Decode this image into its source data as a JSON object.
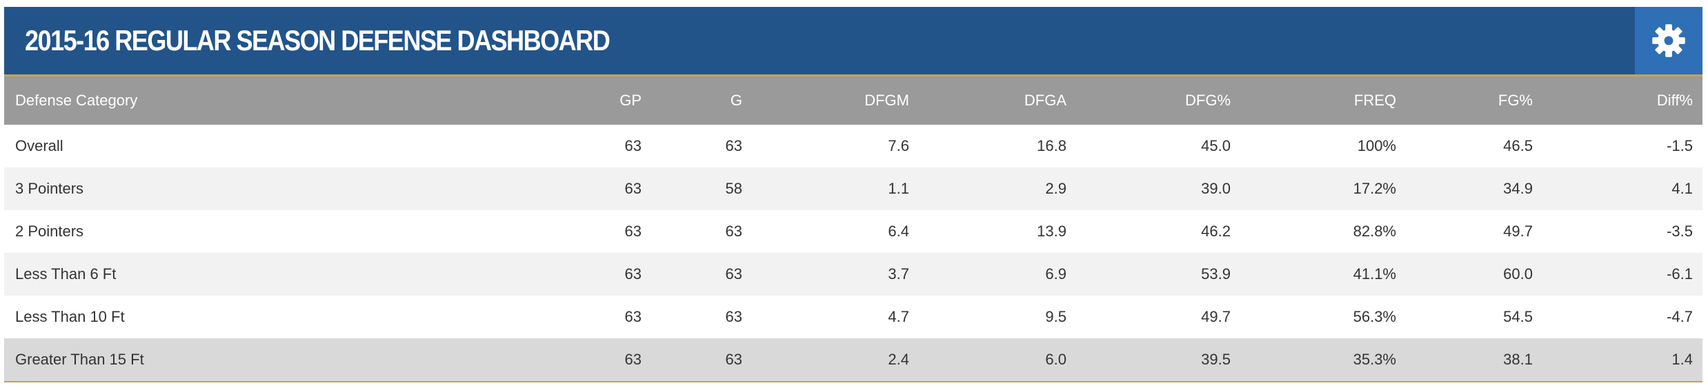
{
  "header": {
    "title": "2015-16 REGULAR SEASON DEFENSE DASHBOARD",
    "settings_icon": "gear-icon"
  },
  "colors": {
    "header_bg": "#22548a",
    "settings_bg": "#2f6fb5",
    "column_header_bg": "#9a9a9a",
    "accent_line": "#c9a44c",
    "row_alt_bg": "#f2f2f2",
    "row_highlight_bg": "#d9d9d9"
  },
  "table": {
    "columns": [
      "Defense Category",
      "GP",
      "G",
      "DFGM",
      "DFGA",
      "DFG%",
      "FREQ",
      "FG%",
      "Diff%"
    ],
    "rows": [
      [
        "Overall",
        "63",
        "63",
        "7.6",
        "16.8",
        "45.0",
        "100%",
        "46.5",
        "-1.5"
      ],
      [
        "3 Pointers",
        "63",
        "58",
        "1.1",
        "2.9",
        "39.0",
        "17.2%",
        "34.9",
        "4.1"
      ],
      [
        "2 Pointers",
        "63",
        "63",
        "6.4",
        "13.9",
        "46.2",
        "82.8%",
        "49.7",
        "-3.5"
      ],
      [
        "Less Than 6 Ft",
        "63",
        "63",
        "3.7",
        "6.9",
        "53.9",
        "41.1%",
        "60.0",
        "-6.1"
      ],
      [
        "Less Than 10 Ft",
        "63",
        "63",
        "4.7",
        "9.5",
        "49.7",
        "56.3%",
        "54.5",
        "-4.7"
      ],
      [
        "Greater Than 15 Ft",
        "63",
        "63",
        "2.4",
        "6.0",
        "39.5",
        "35.3%",
        "38.1",
        "1.4"
      ]
    ]
  }
}
